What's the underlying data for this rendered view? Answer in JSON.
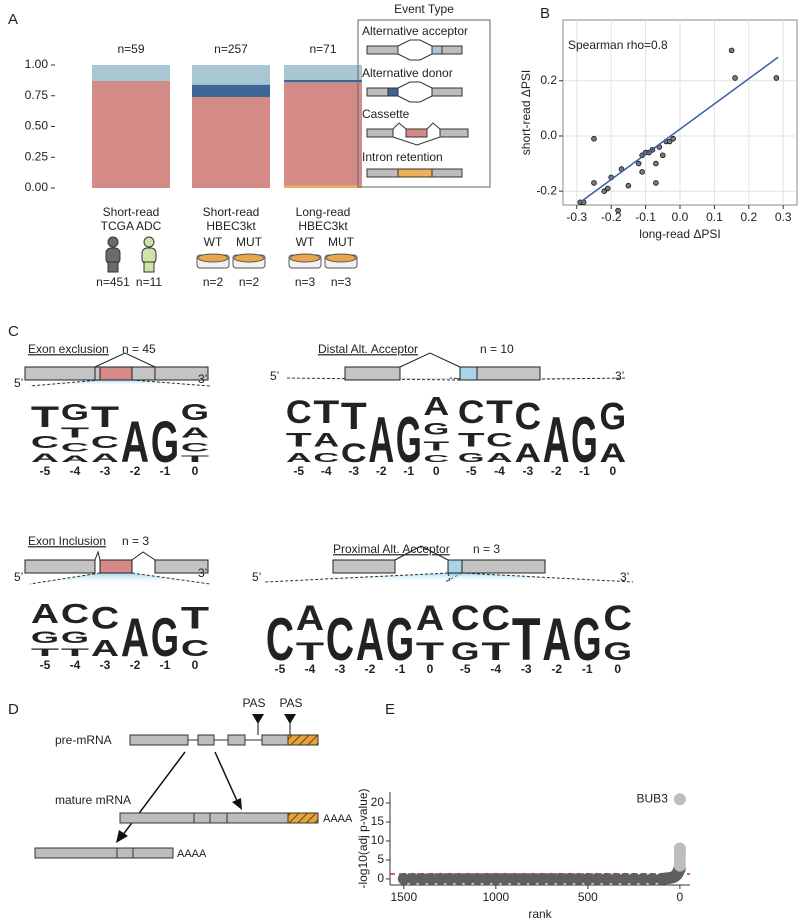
{
  "panel_labels": [
    "A",
    "B",
    "C",
    "D",
    "E"
  ],
  "chart_data": [
    {
      "type": "stacked_bar",
      "categories": [
        [
          "Short-read",
          "TCGA ADC"
        ],
        [
          "Short-read",
          "HBEC3kt"
        ],
        [
          "Long-read",
          "HBEC3kt"
        ]
      ],
      "bar_labels": [
        "n=59",
        "n=257",
        "n=71"
      ],
      "series": [
        {
          "name": "Intron retention",
          "color": "#e9b25a",
          "values": [
            0,
            0,
            0.02
          ]
        },
        {
          "name": "Cassette",
          "color": "#d48a86",
          "values": [
            0.87,
            0.74,
            0.84
          ]
        },
        {
          "name": "Alternative donor",
          "color": "#3b6696",
          "values": [
            0,
            0.1,
            0.02
          ]
        },
        {
          "name": "Alternative acceptor",
          "color": "#a8c7d2",
          "values": [
            0.13,
            0.16,
            0.12
          ]
        }
      ],
      "ylim": [
        -0.06,
        1.06
      ],
      "yticks": [
        {
          "value": 0,
          "label": "0.00"
        },
        {
          "value": 0.25,
          "label": "0.25"
        },
        {
          "value": 0.5,
          "label": "0.50"
        },
        {
          "value": 0.75,
          "label": "0.75"
        },
        {
          "value": 1,
          "label": "1.00"
        }
      ],
      "legend_title": "Event Type",
      "legend": "right",
      "subgroups": [
        [
          {
            "n": "n=451"
          },
          {
            "n": "n=11"
          }
        ],
        [
          {
            "label": "WT",
            "n": "n=2"
          },
          {
            "label": "MUT",
            "n": "n=2"
          }
        ],
        [
          {
            "label": "WT",
            "n": "n=3"
          },
          {
            "label": "MUT",
            "n": "n=3"
          }
        ]
      ]
    },
    {
      "type": "scatter",
      "series": [
        {
          "color": "#7a7a7a",
          "x": [
            0.15,
            0.16,
            0.28,
            -0.29,
            -0.28,
            -0.25,
            -0.25,
            -0.22,
            -0.21,
            -0.2,
            -0.18,
            -0.17,
            -0.15,
            -0.12,
            -0.11,
            -0.11,
            -0.1,
            -0.09,
            -0.08,
            -0.07,
            -0.07,
            -0.06,
            -0.05,
            -0.04,
            -0.03,
            -0.02
          ],
          "values": [
            0.31,
            0.21,
            0.21,
            -0.24,
            -0.24,
            -0.01,
            -0.17,
            -0.2,
            -0.19,
            -0.15,
            -0.27,
            -0.12,
            -0.18,
            -0.1,
            -0.13,
            -0.07,
            -0.06,
            -0.06,
            -0.05,
            -0.17,
            -0.1,
            -0.04,
            -0.07,
            -0.02,
            -0.02,
            -0.01
          ]
        }
      ],
      "fit_line": {
        "color": "#3a5fa8",
        "x": [
          -0.29,
          0.285
        ],
        "y": [
          -0.24,
          0.285
        ]
      },
      "annotation": "Spearman rho=0.8",
      "annotation_color": "#d0312d",
      "xlim": [
        -0.34,
        0.34
      ],
      "ylim": [
        -0.25,
        0.42
      ],
      "xticks": [
        -0.3,
        -0.2,
        -0.1,
        {
          "value": 0,
          "label": "0.0"
        },
        0.1,
        0.2,
        0.3
      ],
      "yticks": [
        -0.2,
        {
          "value": 0,
          "label": "0.0"
        },
        0.2
      ],
      "xlabel": "long-read ΔPSI",
      "ylabel": "short-read ΔPSI",
      "grid": true
    },
    {
      "type": "scatter",
      "series": [
        {
          "color": "#5f5f5f",
          "x": [
            1500,
            1450,
            1400,
            1350,
            1300,
            1250,
            1200,
            1150,
            1100,
            1050,
            1000,
            950,
            900,
            850,
            800,
            750,
            700,
            650,
            600,
            550,
            500,
            450,
            400,
            350,
            300,
            250,
            200,
            150,
            100,
            80,
            60,
            40,
            30,
            20,
            15,
            10,
            8,
            5,
            3,
            2,
            1
          ],
          "values": [
            0,
            0,
            0,
            0,
            0,
            0,
            0,
            0,
            0,
            0,
            0,
            0,
            0,
            0,
            0,
            0,
            0,
            0,
            0,
            0,
            0,
            0,
            0,
            0,
            0,
            0,
            0,
            0,
            0,
            0.1,
            0.2,
            0.4,
            0.6,
            1,
            1.3,
            1.7,
            2,
            2.3,
            2.5,
            2.6,
            2.7
          ]
        },
        {
          "color": "#bdbdbd",
          "x": [
            0,
            0,
            0,
            0,
            0,
            0,
            0
          ],
          "values": [
            3.5,
            4.5,
            5.5,
            6.5,
            7.5,
            8,
            21
          ]
        }
      ],
      "annotation": "BUB3",
      "hline": 1.3,
      "hline_color": "#d62728",
      "xlim": [
        1575,
        -55
      ],
      "ylim": [
        -1.6,
        22.9
      ],
      "xticks": [
        1500,
        1000,
        500,
        0
      ],
      "yticks": [
        0,
        5,
        10,
        15,
        20
      ],
      "xlabel": "rank",
      "ylabel": "-log10(adj p-value)",
      "grid": false
    }
  ],
  "logos": [
    {
      "title": "Exon exclusion",
      "n": "n = 45",
      "panels": [
        [
          [
            "T",
            "C",
            "A"
          ],
          [
            "G",
            "T",
            "C",
            "A"
          ],
          [
            "T",
            "C",
            "A"
          ],
          [
            "A"
          ],
          [
            "G"
          ],
          [
            "G",
            "A",
            "C",
            "T"
          ]
        ]
      ]
    },
    {
      "title": "Distal Alt. Acceptor",
      "n": "n = 10",
      "panels": [
        [
          [
            "C",
            "T",
            "A"
          ],
          [
            "T",
            "A",
            "C"
          ],
          [
            "T",
            "C"
          ],
          [
            "A"
          ],
          [
            "G"
          ],
          [
            "A",
            "G",
            "T",
            "C"
          ]
        ],
        [
          [
            "C",
            "T",
            "G"
          ],
          [
            "T",
            "C",
            "A"
          ],
          [
            "C",
            "A"
          ],
          [
            "A"
          ],
          [
            "G"
          ],
          [
            "G",
            "A"
          ]
        ]
      ]
    },
    {
      "title": "Exon Inclusion",
      "n": "n = 3",
      "panels": [
        [
          [
            "A",
            "G",
            "T"
          ],
          [
            "C",
            "G",
            "T"
          ],
          [
            "C",
            "A"
          ],
          [
            "A"
          ],
          [
            "G"
          ],
          [
            "T",
            "C"
          ]
        ]
      ]
    },
    {
      "title": "Proximal Alt. Acceptor",
      "n": "n = 3",
      "panels": [
        [
          [
            "C"
          ],
          [
            "A",
            "T"
          ],
          [
            "C"
          ],
          [
            "A"
          ],
          [
            "G"
          ],
          [
            "A",
            "T"
          ]
        ],
        [
          [
            "C",
            "G"
          ],
          [
            "C",
            "T"
          ],
          [
            "T"
          ],
          [
            "A"
          ],
          [
            "G"
          ],
          [
            "C",
            "G"
          ]
        ]
      ]
    }
  ],
  "logo_positions": [
    "-5",
    "-4",
    "-3",
    "-2",
    "-1",
    "0"
  ],
  "five_prime": "5’",
  "three_prime": "3’",
  "diagram_d": {
    "pas": [
      "PAS",
      "PAS"
    ],
    "pre": "pre-mRNA",
    "mature": "mature mRNA",
    "polya": [
      "AAAA",
      "AAAA"
    ]
  }
}
